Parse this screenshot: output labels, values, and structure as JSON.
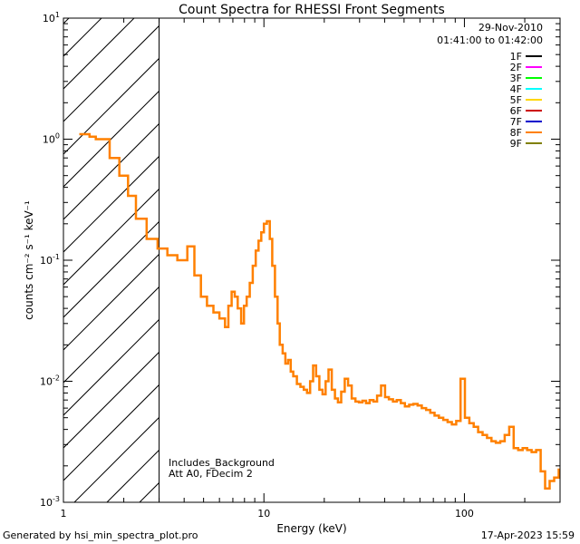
{
  "chart_data": {
    "type": "line",
    "title": "Count Spectra for RHESSI Front Segments",
    "xlabel": "Energy (keV)",
    "ylabel": "counts cm⁻² s⁻¹ keV⁻¹",
    "xscale": "log",
    "yscale": "log",
    "xlim": [
      1.0,
      300
    ],
    "ylim": [
      0.001,
      10
    ],
    "x_ticks": [
      {
        "v": 1,
        "label": "1"
      },
      {
        "v": 10,
        "label": "10"
      },
      {
        "v": 100,
        "label": "100"
      }
    ],
    "y_ticks": [
      {
        "v": 0.001,
        "base": "10",
        "exp": "-3"
      },
      {
        "v": 0.01,
        "base": "10",
        "exp": "-2"
      },
      {
        "v": 0.1,
        "base": "10",
        "exp": "-1"
      },
      {
        "v": 1,
        "base": "10",
        "exp": "0"
      },
      {
        "v": 10,
        "base": "10",
        "exp": "1"
      }
    ],
    "date": "29-Nov-2010",
    "time_range": "01:41:00 to 01:42:00",
    "excluded_region_max_keV": 3.0,
    "annotations": [
      "Includes_Background",
      "Att A0, FDecim 2"
    ],
    "legend": [
      {
        "label": "1F",
        "color": "#000000"
      },
      {
        "label": "2F",
        "color": "#ff00ff"
      },
      {
        "label": "3F",
        "color": "#00ff00"
      },
      {
        "label": "4F",
        "color": "#00ffff"
      },
      {
        "label": "5F",
        "color": "#ffd700"
      },
      {
        "label": "6F",
        "color": "#cc0000"
      },
      {
        "label": "7F",
        "color": "#0000cc"
      },
      {
        "label": "8F",
        "color": "#ff8000"
      },
      {
        "label": "9F",
        "color": "#808000"
      }
    ],
    "series": [
      {
        "name": "8F",
        "color": "#ff8000",
        "step": true,
        "points": [
          [
            1.2,
            1.1
          ],
          [
            1.35,
            1.05
          ],
          [
            1.45,
            1.0
          ],
          [
            1.7,
            0.7
          ],
          [
            1.9,
            0.5
          ],
          [
            2.1,
            0.34
          ],
          [
            2.3,
            0.22
          ],
          [
            2.6,
            0.15
          ],
          [
            2.95,
            0.125
          ],
          [
            3.3,
            0.11
          ],
          [
            3.7,
            0.1
          ],
          [
            4.15,
            0.13
          ],
          [
            4.5,
            0.075
          ],
          [
            4.85,
            0.05
          ],
          [
            5.2,
            0.042
          ],
          [
            5.6,
            0.037
          ],
          [
            6.0,
            0.033
          ],
          [
            6.4,
            0.028
          ],
          [
            6.65,
            0.042
          ],
          [
            6.9,
            0.055
          ],
          [
            7.15,
            0.05
          ],
          [
            7.4,
            0.04
          ],
          [
            7.7,
            0.03
          ],
          [
            7.95,
            0.042
          ],
          [
            8.2,
            0.05
          ],
          [
            8.5,
            0.065
          ],
          [
            8.8,
            0.09
          ],
          [
            9.1,
            0.12
          ],
          [
            9.4,
            0.145
          ],
          [
            9.7,
            0.17
          ],
          [
            10.0,
            0.2
          ],
          [
            10.35,
            0.21
          ],
          [
            10.7,
            0.15
          ],
          [
            11.0,
            0.09
          ],
          [
            11.35,
            0.05
          ],
          [
            11.7,
            0.03
          ],
          [
            12.0,
            0.02
          ],
          [
            12.4,
            0.017
          ],
          [
            12.8,
            0.014
          ],
          [
            13.2,
            0.015
          ],
          [
            13.6,
            0.012
          ],
          [
            14.0,
            0.011
          ],
          [
            14.6,
            0.0095
          ],
          [
            15.2,
            0.009
          ],
          [
            15.8,
            0.0085
          ],
          [
            16.4,
            0.008
          ],
          [
            17.0,
            0.01
          ],
          [
            17.6,
            0.0135
          ],
          [
            18.2,
            0.011
          ],
          [
            18.9,
            0.0085
          ],
          [
            19.6,
            0.0078
          ],
          [
            20.3,
            0.01
          ],
          [
            21.0,
            0.0125
          ],
          [
            21.8,
            0.0085
          ],
          [
            22.6,
            0.0072
          ],
          [
            23.4,
            0.0067
          ],
          [
            24.3,
            0.0082
          ],
          [
            25.3,
            0.0105
          ],
          [
            26.3,
            0.0092
          ],
          [
            27.4,
            0.0072
          ],
          [
            28.6,
            0.0068
          ],
          [
            29.8,
            0.0067
          ],
          [
            31.0,
            0.0069
          ],
          [
            32.3,
            0.0066
          ],
          [
            33.7,
            0.007
          ],
          [
            35.2,
            0.0068
          ],
          [
            36.7,
            0.0076
          ],
          [
            38.4,
            0.0092
          ],
          [
            40.2,
            0.0074
          ],
          [
            42.0,
            0.0071
          ],
          [
            44.0,
            0.0068
          ],
          [
            46.0,
            0.007
          ],
          [
            48.2,
            0.0066
          ],
          [
            50.5,
            0.0062
          ],
          [
            53.0,
            0.0064
          ],
          [
            55.6,
            0.0065
          ],
          [
            58.4,
            0.0063
          ],
          [
            61.3,
            0.006
          ],
          [
            64.4,
            0.0058
          ],
          [
            67.6,
            0.0055
          ],
          [
            71.0,
            0.0052
          ],
          [
            74.6,
            0.005
          ],
          [
            78.4,
            0.0048
          ],
          [
            82.4,
            0.0046
          ],
          [
            86.6,
            0.0044
          ],
          [
            91.0,
            0.0047
          ],
          [
            95.7,
            0.0105
          ],
          [
            100.6,
            0.005
          ],
          [
            105.8,
            0.0045
          ],
          [
            111.3,
            0.0042
          ],
          [
            117.1,
            0.0038
          ],
          [
            123.2,
            0.0036
          ],
          [
            129.6,
            0.0034
          ],
          [
            136.4,
            0.0032
          ],
          [
            143.5,
            0.0031
          ],
          [
            151.0,
            0.0032
          ],
          [
            158.9,
            0.0036
          ],
          [
            167.3,
            0.0042
          ],
          [
            176.1,
            0.0028
          ],
          [
            185.4,
            0.0027
          ],
          [
            195.2,
            0.0028
          ],
          [
            205.5,
            0.0027
          ],
          [
            216.4,
            0.0026
          ],
          [
            227.9,
            0.0027
          ],
          [
            240.0,
            0.0018
          ],
          [
            252.7,
            0.0013
          ],
          [
            266.1,
            0.0015
          ],
          [
            280.3,
            0.0016
          ],
          [
            295.3,
            0.0019
          ]
        ]
      }
    ]
  },
  "footer": {
    "left": "Generated by hsi_min_spectra_plot.pro",
    "right": "17-Apr-2023 15:59"
  }
}
